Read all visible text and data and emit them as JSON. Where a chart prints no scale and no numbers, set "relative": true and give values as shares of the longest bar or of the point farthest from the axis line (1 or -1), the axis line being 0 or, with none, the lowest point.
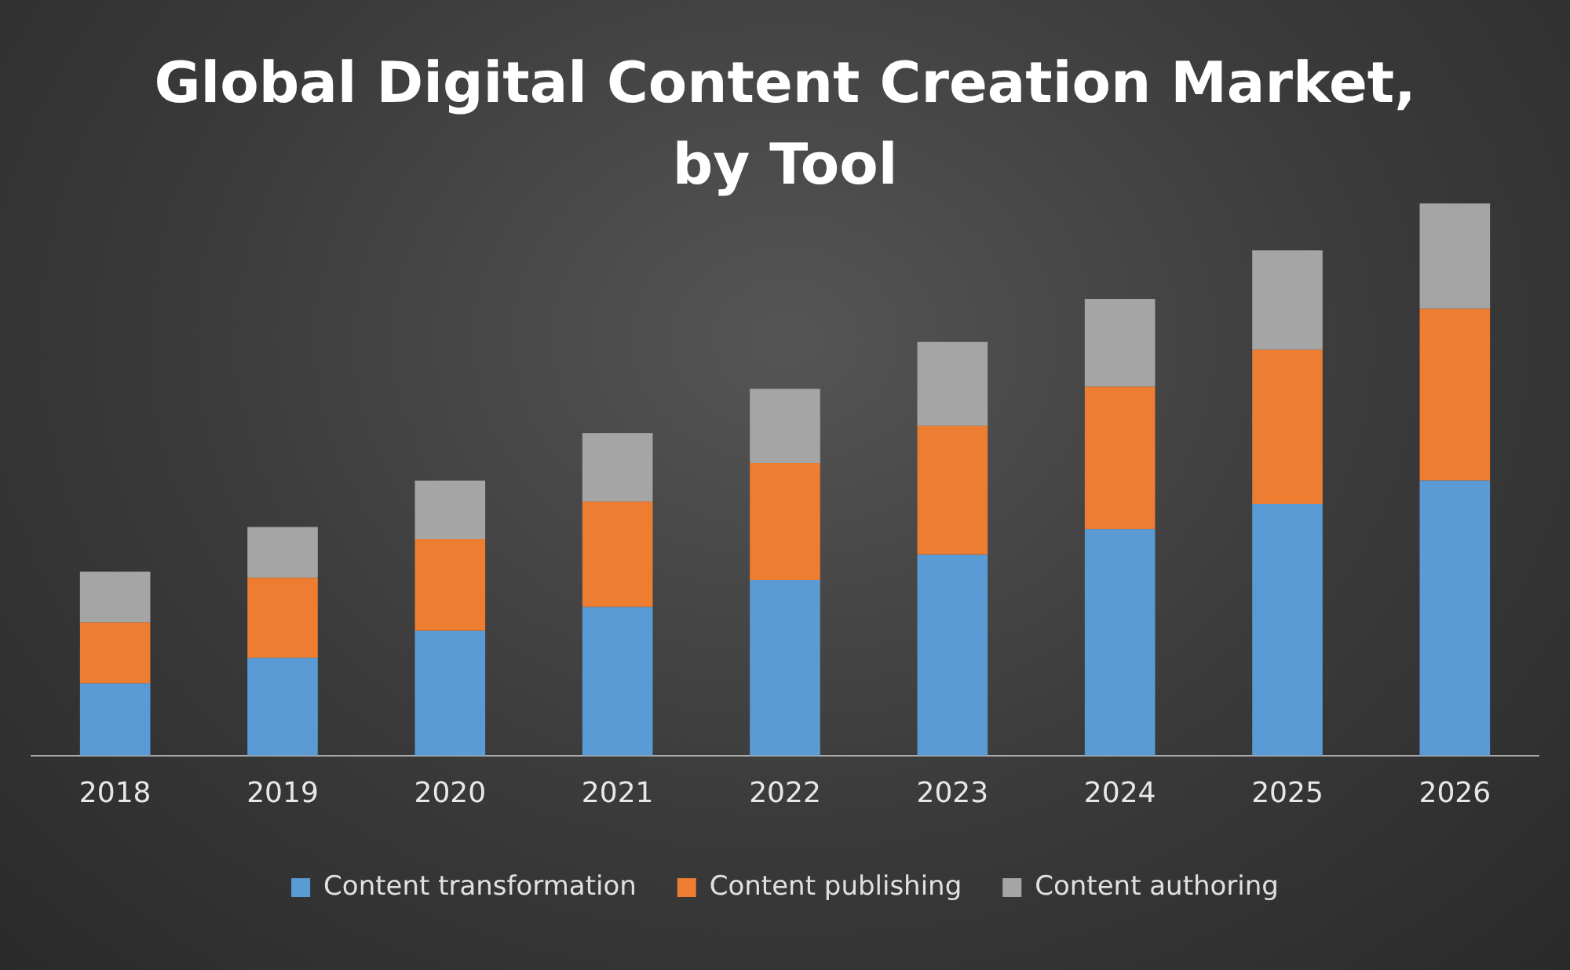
{
  "chart_data": {
    "type": "bar",
    "title": "Global Digital Content Creation Market, by Tool",
    "categories": [
      "2018",
      "2019",
      "2020",
      "2021",
      "2022",
      "2023",
      "2024",
      "2025",
      "2026"
    ],
    "stacked": true,
    "relative": true,
    "legend": "bottom",
    "grid": false,
    "series": [
      {
        "name": "Content transformation",
        "color": "#5b9bd5",
        "values": [
          0.131,
          0.177,
          0.226,
          0.269,
          0.318,
          0.364,
          0.41,
          0.456,
          0.498
        ]
      },
      {
        "name": "Content publishing",
        "color": "#ed7d31",
        "values": [
          0.11,
          0.145,
          0.166,
          0.191,
          0.212,
          0.233,
          0.258,
          0.279,
          0.311
        ]
      },
      {
        "name": "Content authoring",
        "color": "#a5a5a5",
        "values": [
          0.092,
          0.092,
          0.106,
          0.124,
          0.134,
          0.152,
          0.159,
          0.18,
          0.191
        ]
      }
    ]
  }
}
